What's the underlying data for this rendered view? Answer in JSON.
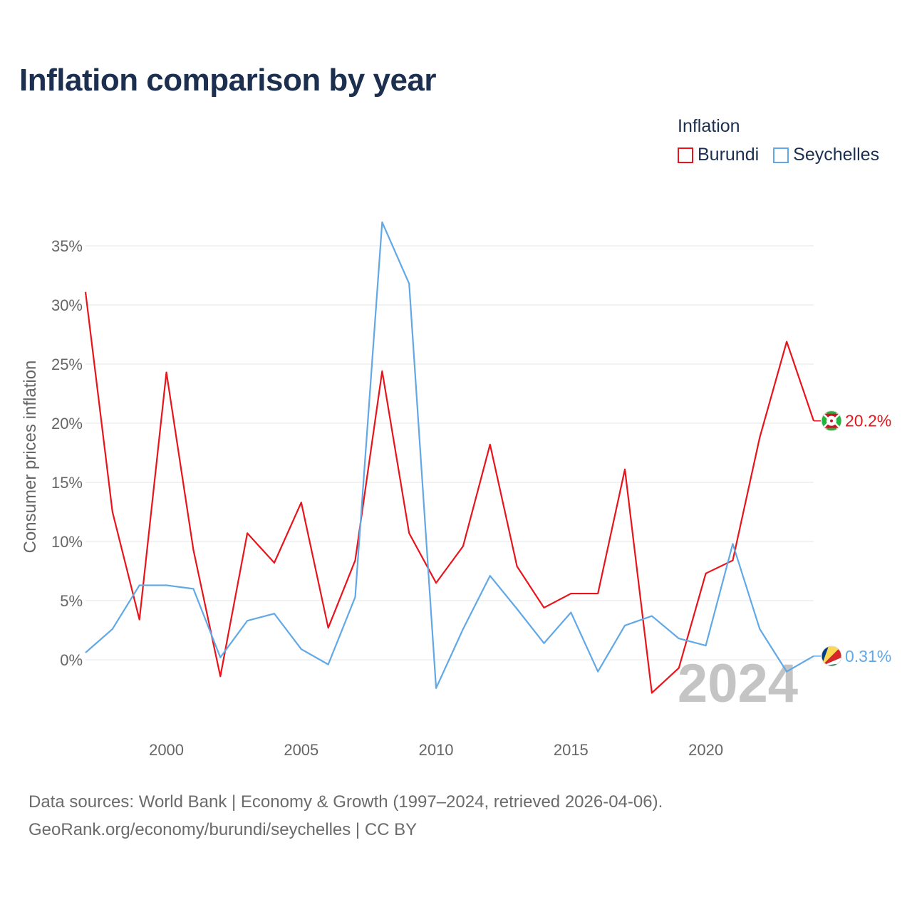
{
  "title": "Inflation comparison by year",
  "legend": {
    "title": "Inflation",
    "items": [
      {
        "label": "Burundi",
        "color": "#e8141b"
      },
      {
        "label": "Seychelles",
        "color": "#61a8e6"
      }
    ]
  },
  "source": {
    "line1": "Data sources: World Bank | Economy & Growth (1997–2024, retrieved 2026-04-06).",
    "line2": "GeoRank.org/economy/burundi/seychelles | CC BY"
  },
  "chart_data": {
    "type": "line",
    "title": "Inflation comparison by year",
    "xlabel": "",
    "ylabel": "Consumer prices inflation",
    "xlim": [
      1997,
      2024
    ],
    "ylim": [
      -5,
      37
    ],
    "xticks": [
      2000,
      2005,
      2010,
      2015,
      2020
    ],
    "yticks": [
      0,
      5,
      10,
      15,
      20,
      25,
      30,
      35
    ],
    "ytick_labels": [
      "0%",
      "5%",
      "10%",
      "15%",
      "20%",
      "25%",
      "30%",
      "35%"
    ],
    "grid": true,
    "legend_position": "top-right",
    "watermark": "2024",
    "x": [
      1997,
      1998,
      1999,
      2000,
      2001,
      2002,
      2003,
      2004,
      2005,
      2006,
      2007,
      2008,
      2009,
      2010,
      2011,
      2012,
      2013,
      2014,
      2015,
      2016,
      2017,
      2018,
      2019,
      2020,
      2021,
      2022,
      2023,
      2024
    ],
    "series": [
      {
        "name": "Burundi",
        "color": "#e8141b",
        "end_label": "20.2%",
        "values": [
          31.1,
          12.5,
          3.4,
          24.3,
          9.3,
          -1.4,
          10.7,
          8.2,
          13.3,
          2.7,
          8.4,
          24.4,
          10.7,
          6.5,
          9.6,
          18.2,
          7.9,
          4.4,
          5.6,
          5.6,
          16.1,
          -2.8,
          -0.7,
          7.3,
          8.4,
          18.8,
          26.9,
          20.2
        ]
      },
      {
        "name": "Seychelles",
        "color": "#61a8e6",
        "end_label": "0.31%",
        "values": [
          0.6,
          2.6,
          6.3,
          6.3,
          6.0,
          0.2,
          3.3,
          3.9,
          0.9,
          -0.4,
          5.3,
          37.0,
          31.8,
          -2.4,
          2.6,
          7.1,
          4.3,
          1.4,
          4.0,
          -1.0,
          2.9,
          3.7,
          1.8,
          1.2,
          9.8,
          2.6,
          -1.0,
          0.31
        ]
      }
    ]
  }
}
